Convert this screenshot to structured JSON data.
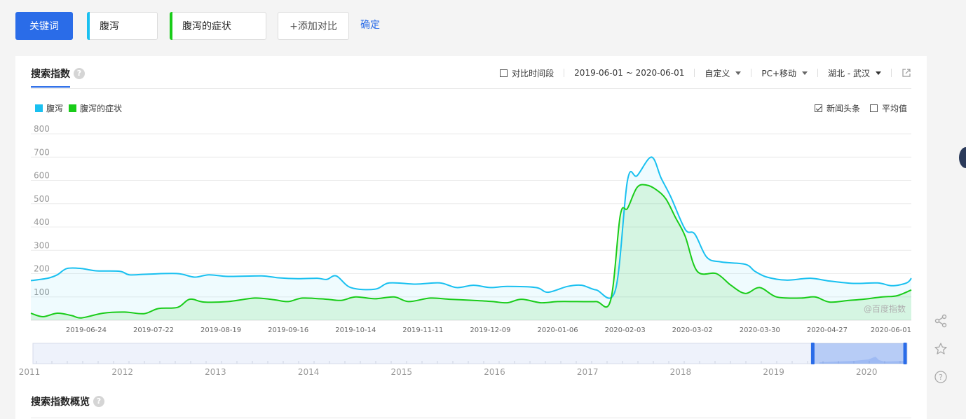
{
  "topbar": {
    "keyword_button": "关键词",
    "keyword1": "腹泻",
    "keyword2": "腹泻的症状",
    "add_compare": "+添加对比",
    "confirm": "确定"
  },
  "panel": {
    "title": "搜索指数",
    "help_icon": "?",
    "compare_period": "对比时间段",
    "date_range": "2019-06-01 ~ 2020-06-01",
    "custom": "自定义",
    "device": "PC+移动",
    "region": "湖北 - 武汉",
    "news_toggle": "新闻头条",
    "avg_toggle": "平均值",
    "watermark": "@百度指数",
    "overview_title": "搜索指数概览"
  },
  "colors": {
    "series1": "#19c0f0",
    "series2": "#19cc19",
    "accent": "#2a6ce8"
  },
  "chart_data": {
    "type": "area",
    "ylim": [
      0,
      800
    ],
    "yticks": [
      100,
      200,
      300,
      400,
      500,
      600,
      700,
      800
    ],
    "xticks": [
      "2019-06-24",
      "2019-07-22",
      "2019-08-19",
      "2019-09-16",
      "2019-10-14",
      "2019-11-11",
      "2019-12-09",
      "2020-01-06",
      "2020-02-03",
      "2020-03-02",
      "2020-03-30",
      "2020-04-27",
      "2020-06-01"
    ],
    "x_range": [
      "2019-06-01",
      "2020-06-01"
    ],
    "series": [
      {
        "name": "腹泻",
        "points": [
          [
            "2019-06-01",
            170
          ],
          [
            "2019-06-08",
            180
          ],
          [
            "2019-06-12",
            195
          ],
          [
            "2019-06-16",
            222
          ],
          [
            "2019-06-22",
            222
          ],
          [
            "2019-06-28",
            212
          ],
          [
            "2019-07-08",
            210
          ],
          [
            "2019-07-12",
            195
          ],
          [
            "2019-07-20",
            198
          ],
          [
            "2019-08-01",
            200
          ],
          [
            "2019-08-08",
            185
          ],
          [
            "2019-08-14",
            195
          ],
          [
            "2019-08-22",
            188
          ],
          [
            "2019-09-05",
            190
          ],
          [
            "2019-09-12",
            182
          ],
          [
            "2019-09-20",
            178
          ],
          [
            "2019-09-28",
            180
          ],
          [
            "2019-10-02",
            175
          ],
          [
            "2019-10-06",
            190
          ],
          [
            "2019-10-12",
            140
          ],
          [
            "2019-10-22",
            133
          ],
          [
            "2019-10-28",
            160
          ],
          [
            "2019-11-08",
            155
          ],
          [
            "2019-11-18",
            160
          ],
          [
            "2019-11-25",
            140
          ],
          [
            "2019-12-02",
            150
          ],
          [
            "2019-12-09",
            140
          ],
          [
            "2019-12-16",
            145
          ],
          [
            "2019-12-28",
            140
          ],
          [
            "2020-01-02",
            120
          ],
          [
            "2020-01-10",
            145
          ],
          [
            "2020-01-16",
            150
          ],
          [
            "2020-01-22",
            130
          ],
          [
            "2020-01-30",
            130
          ],
          [
            "2020-02-04",
            600
          ],
          [
            "2020-02-08",
            620
          ],
          [
            "2020-02-14",
            700
          ],
          [
            "2020-02-18",
            610
          ],
          [
            "2020-02-22",
            530
          ],
          [
            "2020-02-28",
            390
          ],
          [
            "2020-03-03",
            370
          ],
          [
            "2020-03-08",
            270
          ],
          [
            "2020-03-14",
            250
          ],
          [
            "2020-03-24",
            240
          ],
          [
            "2020-03-28",
            210
          ],
          [
            "2020-04-02",
            185
          ],
          [
            "2020-04-10",
            172
          ],
          [
            "2020-04-20",
            180
          ],
          [
            "2020-04-28",
            168
          ],
          [
            "2020-05-08",
            158
          ],
          [
            "2020-05-18",
            160
          ],
          [
            "2020-05-24",
            148
          ],
          [
            "2020-05-30",
            160
          ],
          [
            "2020-06-01",
            180
          ]
        ]
      },
      {
        "name": "腹泻的症状",
        "points": [
          [
            "2019-06-01",
            30
          ],
          [
            "2019-06-06",
            15
          ],
          [
            "2019-06-12",
            30
          ],
          [
            "2019-06-18",
            20
          ],
          [
            "2019-06-22",
            10
          ],
          [
            "2019-07-01",
            30
          ],
          [
            "2019-07-10",
            35
          ],
          [
            "2019-07-18",
            28
          ],
          [
            "2019-07-24",
            50
          ],
          [
            "2019-08-01",
            55
          ],
          [
            "2019-08-06",
            90
          ],
          [
            "2019-08-12",
            78
          ],
          [
            "2019-08-22",
            80
          ],
          [
            "2019-09-02",
            95
          ],
          [
            "2019-09-10",
            88
          ],
          [
            "2019-09-16",
            80
          ],
          [
            "2019-09-22",
            95
          ],
          [
            "2019-10-02",
            90
          ],
          [
            "2019-10-08",
            85
          ],
          [
            "2019-10-14",
            100
          ],
          [
            "2019-10-22",
            92
          ],
          [
            "2019-10-30",
            100
          ],
          [
            "2019-11-05",
            80
          ],
          [
            "2019-11-14",
            95
          ],
          [
            "2019-11-22",
            90
          ],
          [
            "2019-12-02",
            85
          ],
          [
            "2019-12-10",
            80
          ],
          [
            "2019-12-16",
            75
          ],
          [
            "2019-12-22",
            90
          ],
          [
            "2019-12-30",
            75
          ],
          [
            "2020-01-06",
            80
          ],
          [
            "2020-01-14",
            80
          ],
          [
            "2020-01-22",
            80
          ],
          [
            "2020-01-28",
            85
          ],
          [
            "2020-02-01",
            450
          ],
          [
            "2020-02-04",
            480
          ],
          [
            "2020-02-08",
            570
          ],
          [
            "2020-02-12",
            580
          ],
          [
            "2020-02-16",
            560
          ],
          [
            "2020-02-20",
            520
          ],
          [
            "2020-02-24",
            440
          ],
          [
            "2020-02-28",
            360
          ],
          [
            "2020-03-04",
            210
          ],
          [
            "2020-03-12",
            200
          ],
          [
            "2020-03-18",
            150
          ],
          [
            "2020-03-24",
            115
          ],
          [
            "2020-03-30",
            140
          ],
          [
            "2020-04-06",
            100
          ],
          [
            "2020-04-16",
            95
          ],
          [
            "2020-04-22",
            100
          ],
          [
            "2020-04-28",
            78
          ],
          [
            "2020-05-06",
            85
          ],
          [
            "2020-05-12",
            90
          ],
          [
            "2020-05-20",
            100
          ],
          [
            "2020-05-26",
            105
          ],
          [
            "2020-06-01",
            130
          ]
        ]
      }
    ],
    "overview": {
      "years": [
        "2011",
        "2012",
        "2013",
        "2014",
        "2015",
        "2016",
        "2017",
        "2018",
        "2019",
        "2020"
      ],
      "selection": [
        "2019-06-01",
        "2020-06-01"
      ]
    }
  }
}
